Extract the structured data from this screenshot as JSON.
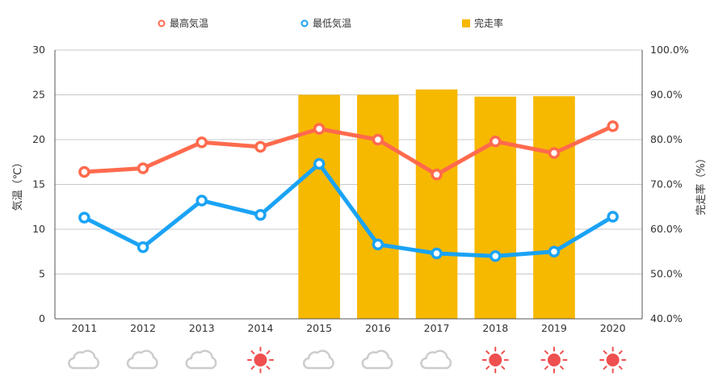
{
  "chart_data": {
    "type": "bar+line",
    "categories": [
      "2011",
      "2012",
      "2013",
      "2014",
      "2015",
      "2016",
      "2017",
      "2018",
      "2019",
      "2020"
    ],
    "series": [
      {
        "name": "最高気温",
        "type": "line",
        "axis": "left",
        "color": "#ff6a4d",
        "values": [
          16.4,
          16.8,
          19.7,
          19.2,
          21.2,
          20.0,
          16.1,
          19.8,
          18.5,
          21.5
        ]
      },
      {
        "name": "最低気温",
        "type": "line",
        "axis": "left",
        "color": "#1aa3f5",
        "values": [
          11.3,
          8.0,
          13.2,
          11.6,
          17.3,
          8.3,
          7.3,
          7.0,
          7.5,
          11.4
        ]
      },
      {
        "name": "完走率",
        "type": "bar",
        "axis": "right",
        "color": "#f7b800",
        "values": [
          null,
          null,
          null,
          null,
          90.0,
          90.0,
          91.2,
          89.6,
          89.7,
          null
        ]
      }
    ],
    "ylabel": "気温（℃）",
    "ylabel_right": "完走率（%）",
    "ylim": [
      0,
      30
    ],
    "ylim_right": [
      40,
      100
    ],
    "yticks": [
      "0",
      "5",
      "10",
      "15",
      "20",
      "25",
      "30"
    ],
    "yticks_right": [
      "40.0%",
      "50.0%",
      "60.0%",
      "70.0%",
      "80.0%",
      "90.0%",
      "100.0%"
    ],
    "grid": true,
    "legend_position": "top",
    "weather_icons": [
      "cloud-icon",
      "cloud-icon",
      "cloud-icon",
      "sun-icon",
      "cloud-icon",
      "cloud-icon",
      "cloud-icon",
      "sun-icon",
      "sun-icon",
      "sun-icon"
    ]
  }
}
